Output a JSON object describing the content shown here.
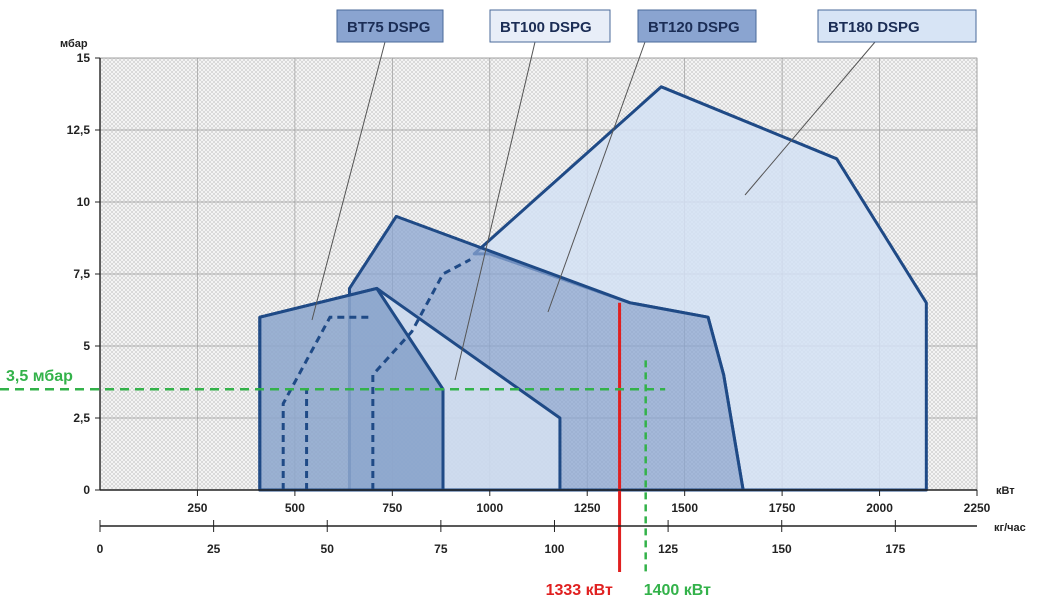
{
  "chart_data": {
    "type": "area",
    "y_unit": "мбар",
    "ylim": [
      0,
      15
    ],
    "y_ticks": [
      "0",
      "2,5",
      "5",
      "7,5",
      "10",
      "12,5",
      "15"
    ],
    "x_unit_kw": "кВт",
    "xlim_kw": [
      0,
      2250
    ],
    "x_ticks_kw": [
      "250",
      "500",
      "750",
      "1000",
      "1250",
      "1500",
      "1750",
      "2000",
      "2250"
    ],
    "x_unit_kg": "кг/час",
    "x_ticks_kg": [
      "0",
      "25",
      "50",
      "75",
      "100",
      "125",
      "150",
      "175"
    ],
    "grid": true,
    "legend_position": "top",
    "series": [
      {
        "name": "BT75 DSPG",
        "color": "#5d7fb5",
        "boundary": [
          [
            410,
            0
          ],
          [
            410,
            6.0
          ],
          [
            710,
            7.0
          ],
          [
            880,
            3.5
          ],
          [
            880,
            0
          ]
        ],
        "dashed": [
          [
            470,
            0
          ],
          [
            470,
            3.0
          ],
          [
            530,
            4.5
          ],
          [
            590,
            6.0
          ],
          [
            700,
            6.0
          ]
        ],
        "dashed2": [
          [
            530,
            0
          ],
          [
            530,
            3.5
          ]
        ]
      },
      {
        "name": "BT100 DSPG",
        "color": "#ccdcf0",
        "boundary": [
          [
            410,
            0
          ],
          [
            410,
            6.0
          ],
          [
            710,
            7.0
          ],
          [
            1180,
            2.5
          ],
          [
            1180,
            0
          ]
        ],
        "dashed": [
          [
            700,
            0
          ],
          [
            700,
            4.0
          ],
          [
            800,
            5.5
          ],
          [
            880,
            7.5
          ],
          [
            950,
            8.0
          ]
        ]
      },
      {
        "name": "BT120 DSPG",
        "color": "#8aa4d0",
        "boundary": [
          [
            640,
            0
          ],
          [
            640,
            7.0
          ],
          [
            760,
            9.5
          ],
          [
            1360,
            6.5
          ],
          [
            1560,
            6.0
          ],
          [
            1600,
            4.0
          ],
          [
            1650,
            0
          ]
        ]
      },
      {
        "name": "BT180 DSPG",
        "color": "#d7e4f5",
        "boundary": [
          [
            960,
            8.2
          ],
          [
            1440,
            14.0
          ],
          [
            1890,
            11.5
          ],
          [
            2120,
            6.5
          ],
          [
            2120,
            0
          ],
          [
            1650,
            0
          ],
          [
            1600,
            4.0
          ],
          [
            1560,
            6.0
          ],
          [
            1360,
            6.5
          ],
          [
            1000,
            8.2
          ]
        ]
      }
    ],
    "annotations": [
      {
        "label": "1333 кВт",
        "x_kw": 1333,
        "y_top": 6.5,
        "color": "#e02020"
      },
      {
        "label": "1400 кВт",
        "x_kw": 1400,
        "y_top": 4.5,
        "color": "#33b24a"
      },
      {
        "label": "3,5 мбар",
        "y": 3.5,
        "color": "#33b24a"
      }
    ],
    "legend_boxes": [
      {
        "name": "BT75 DSPG",
        "fill": "#8aa4d0"
      },
      {
        "name": "BT100 DSPG",
        "fill": "#e8eef8"
      },
      {
        "name": "BT120 DSPG",
        "fill": "#8aa4d0"
      },
      {
        "name": "BT180 DSPG",
        "fill": "#d7e4f5"
      }
    ]
  }
}
